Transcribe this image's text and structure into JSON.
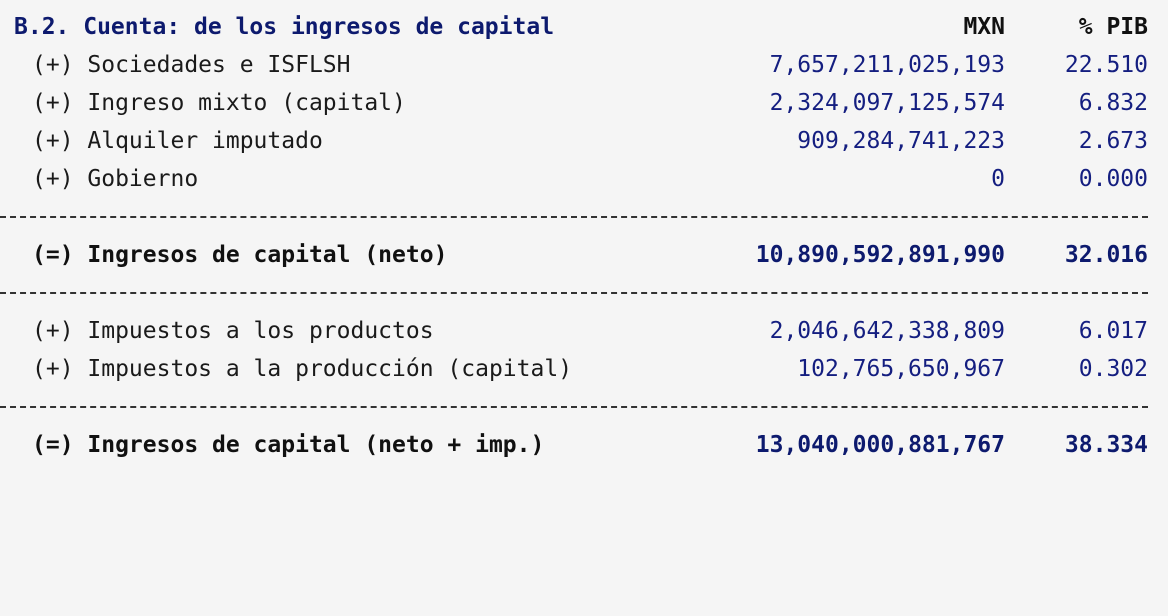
{
  "table": {
    "title": "B.2. Cuenta: de los ingresos de capital",
    "col_mxn": "MXN",
    "col_pib": "% PIB",
    "rows": [
      {
        "label": "(+) Sociedades e ISFLSH",
        "mxn": "7,657,211,025,193",
        "pib": "22.510"
      },
      {
        "label": "(+) Ingreso mixto (capital)",
        "mxn": "2,324,097,125,574",
        "pib": "6.832"
      },
      {
        "label": "(+) Alquiler imputado",
        "mxn": "909,284,741,223",
        "pib": "2.673"
      },
      {
        "label": "(+) Gobierno",
        "mxn": "0",
        "pib": "0.000"
      }
    ],
    "subtotal": {
      "label": "(=) Ingresos de capital (neto)",
      "mxn": "10,890,592,891,990",
      "pib": "32.016"
    },
    "tax_rows": [
      {
        "label": "(+) Impuestos a los productos",
        "mxn": "2,046,642,338,809",
        "pib": "6.017"
      },
      {
        "label": "(+) Impuestos a la producción (capital)",
        "mxn": "102,765,650,967",
        "pib": "0.302"
      }
    ],
    "total": {
      "label": "(=) Ingresos de capital (neto + imp.)",
      "mxn": "13,040,000,881,767",
      "pib": "38.334"
    }
  }
}
